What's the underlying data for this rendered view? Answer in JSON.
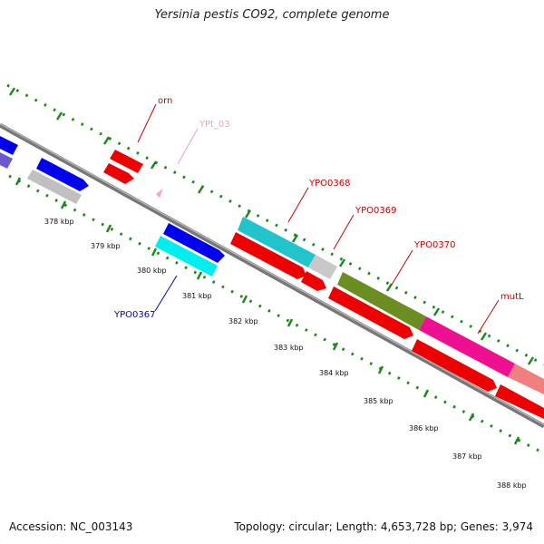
{
  "title": "Yersinia pestis CO92, complete genome",
  "footer": {
    "accession": "Accession: NC_003143",
    "summary": "Topology: circular; Length: 4,653,728 bp; Genes: 3,974"
  },
  "colors": {
    "backbone": "#808080",
    "ticks": "#1a8a1a",
    "gene_label": "#cc0000",
    "trna_label": "#f0a0c0",
    "blue_label": "#0000cc"
  },
  "scale_ticks": [
    {
      "label": "378 kbp"
    },
    {
      "label": "379 kbp"
    },
    {
      "label": "380 kbp"
    },
    {
      "label": "381 kbp"
    },
    {
      "label": "382 kbp"
    },
    {
      "label": "383 kbp"
    },
    {
      "label": "384 kbp"
    },
    {
      "label": "385 kbp"
    },
    {
      "label": "386 kbp"
    },
    {
      "label": "387 kbp"
    },
    {
      "label": "388 kbp"
    }
  ],
  "gene_labels": [
    {
      "text": "orn",
      "color": "#cc0000"
    },
    {
      "text": "YPt_03",
      "color": "#f0a0c0"
    },
    {
      "text": "YPO0368",
      "color": "#cc0000"
    },
    {
      "text": "YPO0369",
      "color": "#cc0000"
    },
    {
      "text": "YPO0370",
      "color": "#cc0000"
    },
    {
      "text": "mutL",
      "color": "#cc0000"
    },
    {
      "text": "YPO0367",
      "color": "#0000cc"
    }
  ]
}
